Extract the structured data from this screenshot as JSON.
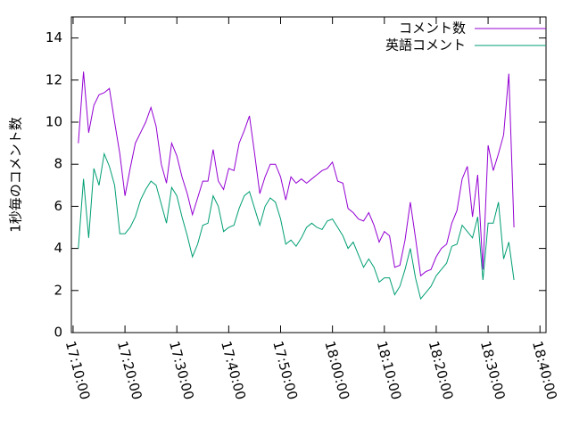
{
  "chart_data": {
    "type": "line",
    "y_label": "1秒毎のコメント数",
    "x": [
      "17:11:00",
      "17:12:00",
      "17:13:00",
      "17:14:00",
      "17:15:00",
      "17:16:00",
      "17:17:00",
      "17:18:00",
      "17:19:00",
      "17:20:00",
      "17:21:00",
      "17:22:00",
      "17:23:00",
      "17:24:00",
      "17:25:00",
      "17:26:00",
      "17:27:00",
      "17:28:00",
      "17:29:00",
      "17:30:00",
      "17:31:00",
      "17:32:00",
      "17:33:00",
      "17:34:00",
      "17:35:00",
      "17:36:00",
      "17:37:00",
      "17:38:00",
      "17:39:00",
      "17:40:00",
      "17:41:00",
      "17:42:00",
      "17:43:00",
      "17:44:00",
      "17:45:00",
      "17:46:00",
      "17:47:00",
      "17:48:00",
      "17:49:00",
      "17:50:00",
      "17:51:00",
      "17:52:00",
      "17:53:00",
      "17:54:00",
      "17:55:00",
      "17:56:00",
      "17:57:00",
      "17:58:00",
      "17:59:00",
      "18:00:00",
      "18:01:00",
      "18:02:00",
      "18:03:00",
      "18:04:00",
      "18:05:00",
      "18:06:00",
      "18:07:00",
      "18:08:00",
      "18:09:00",
      "18:10:00",
      "18:11:00",
      "18:12:00",
      "18:13:00",
      "18:14:00",
      "18:15:00",
      "18:16:00",
      "18:17:00",
      "18:18:00",
      "18:19:00",
      "18:20:00",
      "18:21:00",
      "18:22:00",
      "18:23:00",
      "18:24:00",
      "18:25:00",
      "18:26:00",
      "18:27:00",
      "18:28:00",
      "18:29:00",
      "18:30:00",
      "18:31:00",
      "18:32:00",
      "18:33:00",
      "18:34:00",
      "18:35:00"
    ],
    "series": [
      {
        "name": "コメント数",
        "color": "#9400d3",
        "values": [
          9,
          12.4,
          9.5,
          10.8,
          11.3,
          11.4,
          11.6,
          10,
          8.5,
          6.5,
          7.8,
          9,
          9.5,
          10,
          10.7,
          9.8,
          8,
          7.1,
          9,
          8.4,
          7.4,
          6.6,
          5.6,
          6.4,
          7.2,
          7.2,
          8.7,
          7.2,
          6.8,
          7.8,
          7.7,
          9,
          9.6,
          10.3,
          8.5,
          6.6,
          7.4,
          8,
          8,
          7.4,
          6.3,
          7.4,
          7.1,
          7.3,
          7.1,
          7.3,
          7.5,
          7.7,
          7.8,
          8.1,
          7.2,
          7.1,
          5.9,
          5.7,
          5.4,
          5.3,
          5.7,
          5.1,
          4.3,
          4.8,
          4.6,
          3.1,
          3.2,
          4.4,
          6.2,
          4.5,
          2.7,
          2.9,
          3,
          3.6,
          4,
          4.2,
          5.2,
          5.8,
          7.3,
          7.9,
          5.5,
          7.5,
          3,
          8.9,
          7.7,
          8.5,
          9.4,
          12.3,
          5
        ]
      },
      {
        "name": "英語コメント",
        "color": "#009e73",
        "values": [
          4,
          7.3,
          4.5,
          7.8,
          7,
          8.5,
          7.9,
          7,
          4.7,
          4.7,
          5,
          5.5,
          6.3,
          6.8,
          7.2,
          7,
          6.1,
          5.2,
          6.9,
          6.5,
          5.5,
          4.6,
          3.6,
          4.2,
          5.1,
          5.2,
          6.5,
          6,
          4.8,
          5,
          5.1,
          5.9,
          6.5,
          6.7,
          5.9,
          5.1,
          6,
          6.4,
          6.2,
          5.4,
          4.2,
          4.4,
          4.1,
          4.5,
          5,
          5.2,
          5,
          4.9,
          5.3,
          5.4,
          5,
          4.6,
          4,
          4.3,
          3.7,
          3.1,
          3.5,
          3.1,
          2.4,
          2.6,
          2.6,
          1.8,
          2.2,
          3,
          4,
          2.6,
          1.6,
          1.9,
          2.2,
          2.7,
          3,
          3.3,
          4.1,
          4.2,
          5.1,
          4.8,
          4.5,
          5.5,
          2.5,
          5.2,
          5.2,
          6.2,
          3.5,
          4.3,
          2.5
        ]
      }
    ],
    "xlim": [
      "17:09:40",
      "18:41:10"
    ],
    "xticks": [
      "17:10:00",
      "17:20:00",
      "17:30:00",
      "17:40:00",
      "17:50:00",
      "18:00:00",
      "18:10:00",
      "18:20:00",
      "18:30:00",
      "18:40:00"
    ],
    "ylim": [
      0,
      15
    ],
    "yticks": [
      0,
      2,
      4,
      6,
      8,
      10,
      12,
      14
    ],
    "legend": "top-right"
  }
}
